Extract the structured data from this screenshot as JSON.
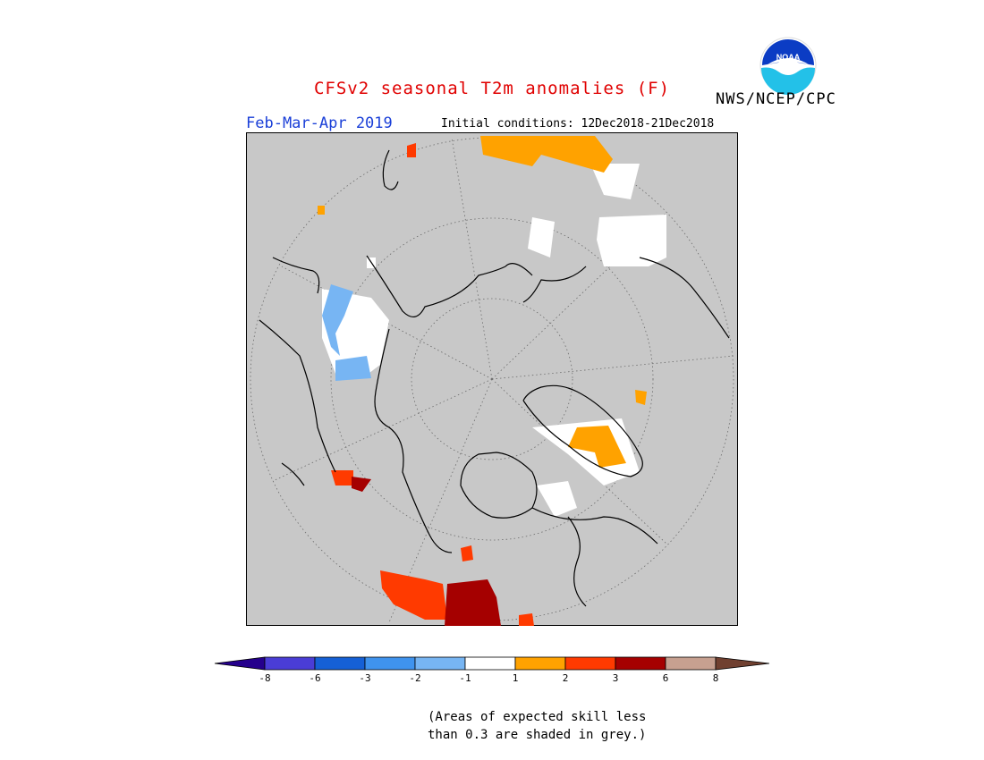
{
  "header": {
    "title": "CFSv2 seasonal T2m anomalies (F)",
    "title_color": "#e00000",
    "org": "NWS/NCEP/CPC",
    "period": "Feb-Mar-Apr 2019",
    "period_color": "#1a3fd8",
    "initial_conditions": "Initial conditions: 12Dec2018-21Dec2018"
  },
  "logo": {
    "icon": "noaa-logo-icon",
    "text": "NOAA"
  },
  "map": {
    "projection": "north-polar-stereographic",
    "background_color": "#c8c8c8",
    "skill_mask_note": "grey = low skill"
  },
  "colorbar": {
    "colors": [
      "#25008c",
      "#4a3dd6",
      "#1560d6",
      "#3f93ee",
      "#77b5f3",
      "#ffffff",
      "#ffa200",
      "#ff3a00",
      "#a50000",
      "#c7a090",
      "#704030"
    ],
    "labels": [
      "-8",
      "-6",
      "-3",
      "-2",
      "-1",
      "1",
      "2",
      "3",
      "6",
      "8"
    ]
  },
  "footnote": {
    "line1": "(Areas of expected skill less",
    "line2": "than 0.3 are shaded in grey.)"
  }
}
